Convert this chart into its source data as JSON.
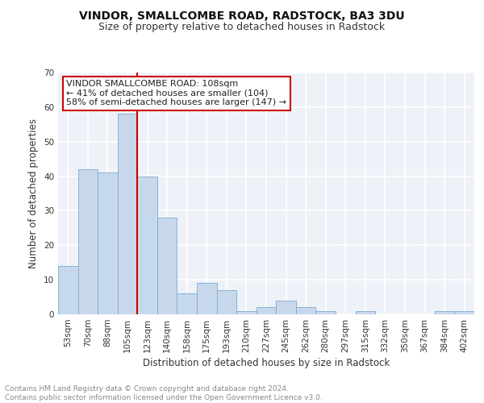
{
  "title": "VINDOR, SMALLCOMBE ROAD, RADSTOCK, BA3 3DU",
  "subtitle": "Size of property relative to detached houses in Radstock",
  "xlabel": "Distribution of detached houses by size in Radstock",
  "ylabel": "Number of detached properties",
  "bar_labels": [
    "53sqm",
    "70sqm",
    "88sqm",
    "105sqm",
    "123sqm",
    "140sqm",
    "158sqm",
    "175sqm",
    "193sqm",
    "210sqm",
    "227sqm",
    "245sqm",
    "262sqm",
    "280sqm",
    "297sqm",
    "315sqm",
    "332sqm",
    "350sqm",
    "367sqm",
    "384sqm",
    "402sqm"
  ],
  "bar_values": [
    14,
    42,
    41,
    58,
    40,
    28,
    6,
    9,
    7,
    1,
    2,
    4,
    2,
    1,
    0,
    1,
    0,
    0,
    0,
    1,
    1
  ],
  "bar_color": "#c8d8ec",
  "bar_edge_color": "#7aaad0",
  "property_line_x": 3.5,
  "annotation_text": "VINDOR SMALLCOMBE ROAD: 108sqm\n← 41% of detached houses are smaller (104)\n58% of semi-detached houses are larger (147) →",
  "annotation_box_color": "#ffffff",
  "annotation_box_edge": "#cc0000",
  "vline_color": "#cc0000",
  "ylim": [
    0,
    70
  ],
  "yticks": [
    0,
    10,
    20,
    30,
    40,
    50,
    60,
    70
  ],
  "footer_text": "Contains HM Land Registry data © Crown copyright and database right 2024.\nContains public sector information licensed under the Open Government Licence v3.0.",
  "background_color": "#eef2f8",
  "grid_color": "#ffffff",
  "title_fontsize": 10,
  "subtitle_fontsize": 9,
  "xlabel_fontsize": 8.5,
  "ylabel_fontsize": 8.5,
  "tick_fontsize": 7.5,
  "annotation_fontsize": 8,
  "footer_fontsize": 6.5
}
